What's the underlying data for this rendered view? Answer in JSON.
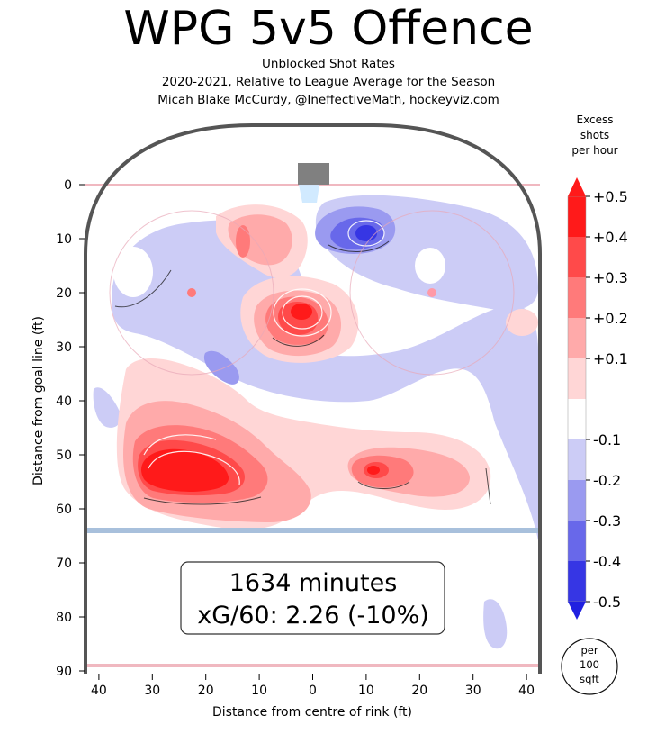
{
  "header": {
    "title": "WPG 5v5 Offence",
    "subtitle_1": "Unblocked Shot Rates",
    "subtitle_2": "2020-2021, Relative to League Average for the Season",
    "subtitle_3": "Micah Blake McCurdy, @IneffectiveMath, hockeyviz.com"
  },
  "chart_data": {
    "type": "heatmap",
    "xlabel": "Distance from centre of rink (ft)",
    "ylabel": "Distance from goal line (ft)",
    "x_ticks": [
      "40",
      "30",
      "20",
      "10",
      "0",
      "10",
      "20",
      "30",
      "40"
    ],
    "y_ticks": [
      "0",
      "10",
      "20",
      "30",
      "40",
      "50",
      "60",
      "70",
      "80",
      "90"
    ],
    "xlim": [
      -42.5,
      42.5
    ],
    "ylim": [
      0,
      90
    ],
    "colorbar": {
      "title_lines": [
        "Excess",
        "shots",
        "per hour"
      ],
      "tick_labels": [
        "+0.5",
        "+0.4",
        "+0.3",
        "+0.2",
        "+0.1",
        "-0.1",
        "-0.2",
        "-0.3",
        "-0.4",
        "-0.5"
      ],
      "bands": [
        {
          "low": 0.4,
          "high": 0.5,
          "color": "#ff1a1a"
        },
        {
          "low": 0.3,
          "high": 0.4,
          "color": "#ff4a4a"
        },
        {
          "low": 0.2,
          "high": 0.3,
          "color": "#ff7a7a"
        },
        {
          "low": 0.1,
          "high": 0.2,
          "color": "#ffaaaa"
        },
        {
          "low": 0.0,
          "high": 0.1,
          "color": "#ffd6d6"
        },
        {
          "low": -0.1,
          "high": 0.0,
          "color": "#ffffff"
        },
        {
          "low": -0.2,
          "high": -0.1,
          "color": "#ccccf6"
        },
        {
          "low": -0.3,
          "high": -0.2,
          "color": "#9a9af0"
        },
        {
          "low": -0.4,
          "high": -0.3,
          "color": "#6868ea"
        },
        {
          "low": -0.5,
          "high": -0.4,
          "color": "#3636e4"
        }
      ],
      "unit_label_lines": [
        "per",
        "100",
        "sqft"
      ]
    },
    "hotspots": [
      {
        "x": -22,
        "y": 53,
        "peak": 0.5,
        "sign": "positive"
      },
      {
        "x": -2,
        "y": 23,
        "peak": 0.4,
        "sign": "positive"
      },
      {
        "x": 12,
        "y": 52,
        "peak": 0.35,
        "sign": "positive"
      },
      {
        "x": 10,
        "y": 9,
        "peak": -0.45,
        "sign": "negative"
      },
      {
        "x": 33,
        "y": 82,
        "peak": -0.2,
        "sign": "negative"
      }
    ],
    "annotation": {
      "line_1": "1634 minutes",
      "line_2": "xG/60: 2.26 (-10%)"
    }
  },
  "colors": {
    "boards": "#555555",
    "goal_line": "#f0b8c0",
    "blue_line": "#a8c0dc",
    "faceoff_circle": "#e8a8b8",
    "net": "#808080",
    "crease": "#cce8ff",
    "positive": "#ff1a1a",
    "negative": "#2020e0"
  }
}
